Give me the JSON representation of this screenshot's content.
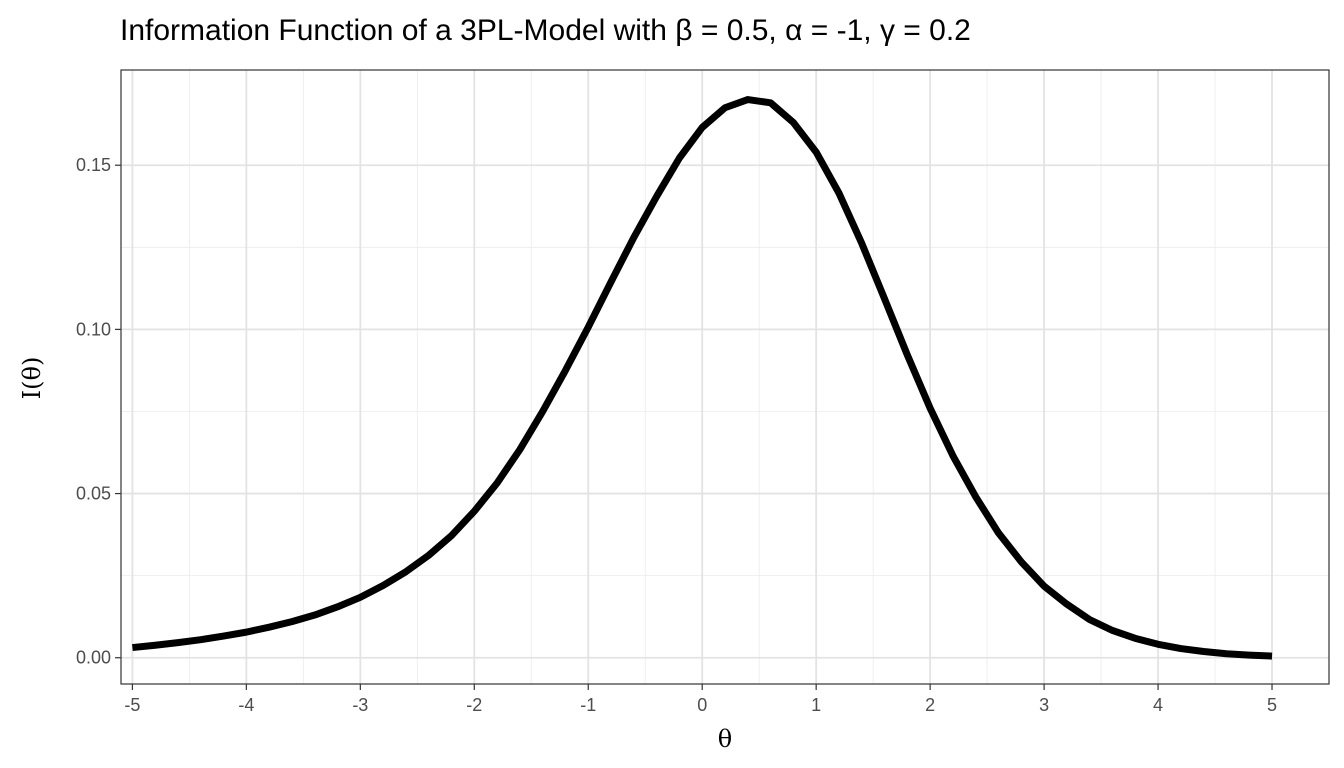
{
  "chart_data": {
    "type": "line",
    "title": "Information Function of a 3PL-Model with β = 0.5, α = -1, γ = 0.2",
    "xlabel": "θ",
    "ylabel": "I(θ)",
    "xlim": [
      -5.1,
      5.5
    ],
    "ylim": [
      -0.008,
      0.179
    ],
    "x_ticks": [
      -5,
      -4,
      -3,
      -2,
      -1,
      0,
      1,
      2,
      3,
      4,
      5
    ],
    "x_tick_labels": [
      "-5",
      "-4",
      "-3",
      "-2",
      "-1",
      "0",
      "1",
      "2",
      "3",
      "4",
      "5"
    ],
    "y_ticks": [
      0.0,
      0.05,
      0.1,
      0.15
    ],
    "y_tick_labels": [
      "0.00",
      "0.05",
      "0.10",
      "0.15"
    ],
    "grid": true,
    "legend": "none",
    "series": [
      {
        "color": "#000000",
        "x": [
          -5.0,
          -4.8,
          -4.6,
          -4.4,
          -4.2,
          -4.0,
          -3.8,
          -3.6,
          -3.4,
          -3.2,
          -3.0,
          -2.8,
          -2.6,
          -2.4,
          -2.2,
          -2.0,
          -1.8,
          -1.6,
          -1.4,
          -1.2,
          -1.0,
          -0.8,
          -0.6,
          -0.4,
          -0.2,
          0.0,
          0.2,
          0.4,
          0.6,
          0.8,
          1.0,
          1.2,
          1.4,
          1.6,
          1.8,
          2.0,
          2.2,
          2.4,
          2.6,
          2.8,
          3.0,
          3.2,
          3.4,
          3.6,
          3.8,
          4.0,
          4.2,
          4.4,
          4.6,
          4.8,
          5.0
        ],
        "y": [
          0.0031,
          0.0038,
          0.0046,
          0.0055,
          0.0066,
          0.0078,
          0.0093,
          0.011,
          0.013,
          0.0155,
          0.0184,
          0.022,
          0.0262,
          0.0312,
          0.0372,
          0.0446,
          0.0532,
          0.0634,
          0.075,
          0.0875,
          0.1007,
          0.1145,
          0.128,
          0.1405,
          0.1522,
          0.1615,
          0.1675,
          0.17,
          0.169,
          0.163,
          0.154,
          0.1415,
          0.1262,
          0.1093,
          0.0922,
          0.076,
          0.0615,
          0.049,
          0.038,
          0.0292,
          0.0218,
          0.0163,
          0.0116,
          0.0083,
          0.0059,
          0.0041,
          0.0028,
          0.0019,
          0.0012,
          0.0008,
          0.0005
        ]
      }
    ]
  }
}
